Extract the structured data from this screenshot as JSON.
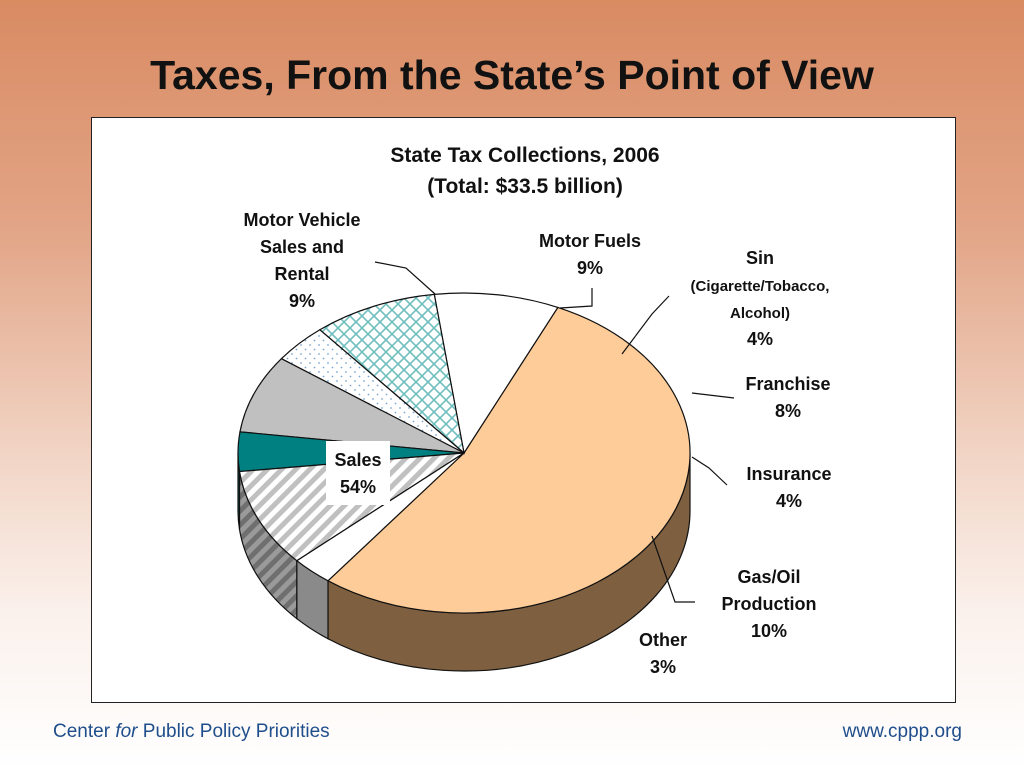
{
  "slide": {
    "title": "Taxes, From the State’s Point of View"
  },
  "footer": {
    "org_prefix": "Center ",
    "org_italic": "for",
    "org_suffix": " Public Policy Priorities",
    "url": "www.cppp.org"
  },
  "colors": {
    "sales": "#fdcc99",
    "sales_side": "#7e6040",
    "teal": "#008080",
    "cross": "#6fbfbf",
    "stripe": "#c0c0c0",
    "gray_slice": "#c0c0c0",
    "gray_side": "#8a8a8a"
  },
  "chart_data": {
    "type": "pie",
    "title": "State Tax Collections, 2006",
    "subtitle": "(Total: $33.5 billion)",
    "slices": [
      {
        "key": "sales",
        "label_lines": [
          "Sales"
        ],
        "value_label": "54%",
        "value": 54,
        "fill": "sales"
      },
      {
        "key": "motor_vehicle",
        "label_lines": [
          "Motor Vehicle",
          "Sales and",
          "Rental"
        ],
        "value_label": "9%",
        "value": 9,
        "fill": "white"
      },
      {
        "key": "motor_fuels",
        "label_lines": [
          "Motor Fuels"
        ],
        "value_label": "9%",
        "value": 9,
        "fill": "crosshatch"
      },
      {
        "key": "sin",
        "label_lines": [
          "Sin",
          "(Cigarette/Tobacco,",
          "Alcohol)"
        ],
        "value_label": "4%",
        "value": 4,
        "fill": "dots"
      },
      {
        "key": "franchise",
        "label_lines": [
          "Franchise"
        ],
        "value_label": "8%",
        "value": 8,
        "fill": "gray"
      },
      {
        "key": "insurance",
        "label_lines": [
          "Insurance"
        ],
        "value_label": "4%",
        "value": 4,
        "fill": "teal"
      },
      {
        "key": "gas_oil",
        "label_lines": [
          "Gas/Oil",
          "Production"
        ],
        "value_label": "10%",
        "value": 10,
        "fill": "stripes"
      },
      {
        "key": "other",
        "label_lines": [
          "Other"
        ],
        "value_label": "3%",
        "value": 3,
        "fill": "white"
      }
    ]
  }
}
